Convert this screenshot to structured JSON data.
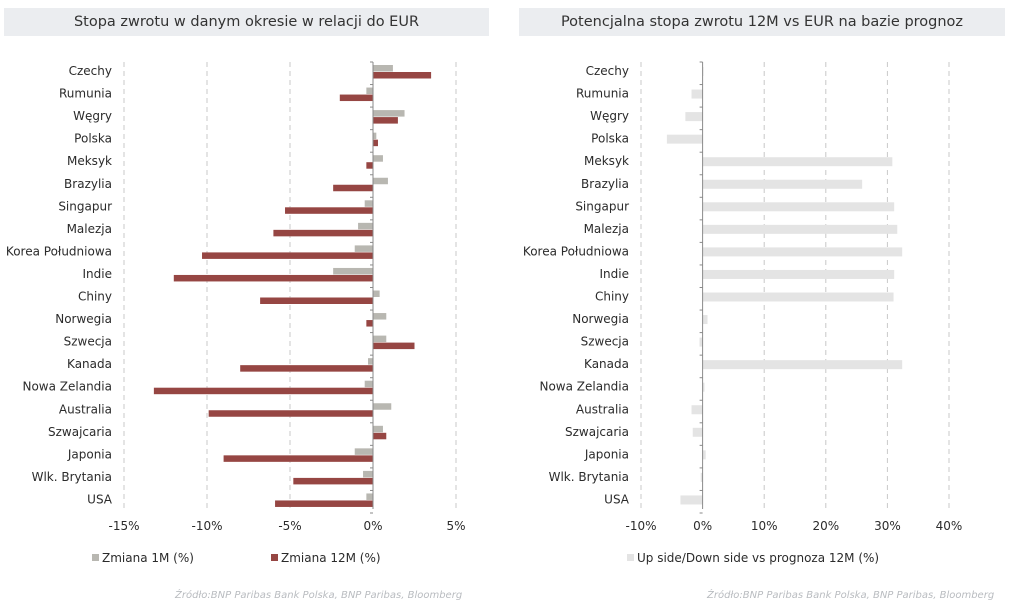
{
  "source_left": "Źródło:BNP Paribas Bank Polska, BNP Paribas, Bloomberg",
  "source_right": "Źródło:BNP Paribas Bank Polska, BNP Paribas, Bloomberg",
  "colors": {
    "series_1m": "#b8b7b1",
    "series_12m": "#964643",
    "series_forecast": "#e4e4e4",
    "grid": "#c8c8c8"
  },
  "chart_data": [
    {
      "type": "bar",
      "orientation": "horizontal",
      "title": "Stopa zwrotu w danym okresie w relacji do EUR",
      "categories": [
        "Czechy",
        "Rumunia",
        "Węgry",
        "Polska",
        "Meksyk",
        "Brazylia",
        "Singapur",
        "Malezja",
        "Korea Południowa",
        "Indie",
        "Chiny",
        "Norwegia",
        "Szwecja",
        "Kanada",
        "Nowa Zelandia",
        "Australia",
        "Szwajcaria",
        "Japonia",
        "Wlk. Brytania",
        "USA"
      ],
      "series": [
        {
          "name": "Zmiana 1M (%)",
          "values": [
            1.2,
            -0.4,
            1.9,
            0.2,
            0.6,
            0.9,
            -0.5,
            -0.9,
            -1.1,
            -2.4,
            0.4,
            0.8,
            0.8,
            -0.3,
            -0.5,
            1.1,
            0.6,
            -1.1,
            -0.6,
            -0.4
          ]
        },
        {
          "name": "Zmiana 12M (%)",
          "values": [
            3.5,
            -2.0,
            1.5,
            0.3,
            -0.4,
            -2.4,
            -5.3,
            -6.0,
            -10.3,
            -12.0,
            -6.8,
            -0.4,
            2.5,
            -8.0,
            -13.2,
            -9.9,
            0.8,
            -9.0,
            -4.8,
            -5.9
          ]
        }
      ],
      "xlim": [
        -15,
        5
      ],
      "xticks": [
        -15,
        -10,
        -5,
        0,
        5
      ],
      "xtick_labels": [
        "-15%",
        "-10%",
        "-5%",
        "0%",
        "5%"
      ],
      "grid": "vertical dashed",
      "legend": "bottom"
    },
    {
      "type": "bar",
      "orientation": "horizontal",
      "title": "Potencjalna stopa zwrotu 12M vs EUR na bazie prognoz",
      "categories": [
        "Czechy",
        "Rumunia",
        "Węgry",
        "Polska",
        "Meksyk",
        "Brazylia",
        "Singapur",
        "Malezja",
        "Korea Południowa",
        "Indie",
        "Chiny",
        "Norwegia",
        "Szwecja",
        "Kanada",
        "Nowa Zelandia",
        "Australia",
        "Szwajcaria",
        "Japonia",
        "Wlk. Brytania",
        "USA"
      ],
      "series": [
        {
          "name": "Up side/Down side vs prognoza 12M (%)",
          "values": [
            0.0,
            -1.8,
            -2.8,
            -5.8,
            30.8,
            25.9,
            31.1,
            31.6,
            32.4,
            31.1,
            31.0,
            0.8,
            -0.5,
            32.4,
            0.3,
            -1.8,
            -1.6,
            0.5,
            -0.3,
            -3.6
          ]
        }
      ],
      "xlim": [
        -10,
        40
      ],
      "xticks": [
        -10,
        0,
        10,
        20,
        30,
        40
      ],
      "xtick_labels": [
        "-10%",
        "0%",
        "10%",
        "20%",
        "30%",
        "40%"
      ],
      "grid": "vertical dashed",
      "legend": "bottom"
    }
  ]
}
